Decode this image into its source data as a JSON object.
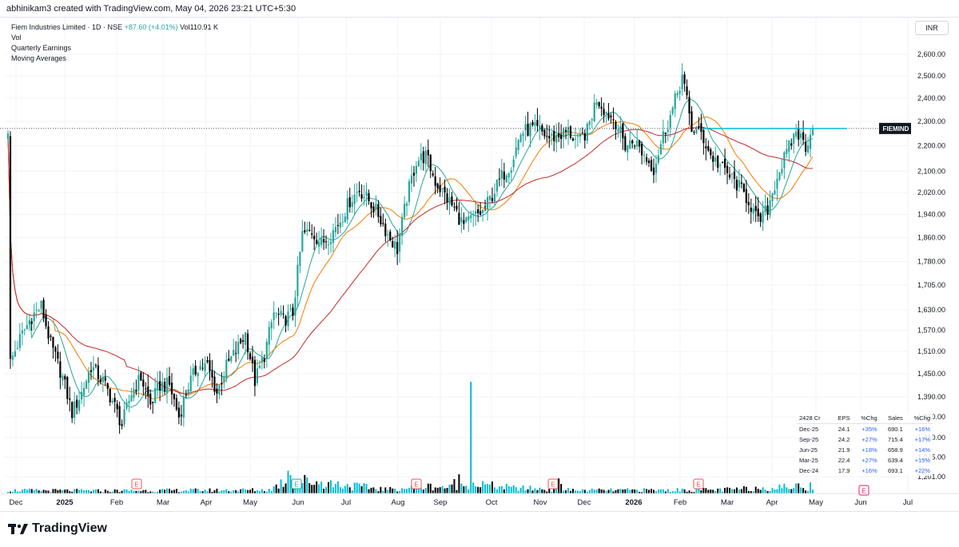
{
  "header": {
    "text": "abhinikam3 created with TradingView.com, May 04, 2026 23:21 UTC+5:30"
  },
  "legend": {
    "title": "Fiem Industries Limited · 1D · NSE",
    "change": "+87.60 (+4.01%)",
    "vol": "Vol110.91 K",
    "line2": "Vol",
    "line3": "Quarterly Earnings",
    "line4": "Moving Averages"
  },
  "currency": "INR",
  "brand": "TradingView",
  "colors": {
    "up": "#26a69a",
    "down": "#000000",
    "ma_fast": "#26a69a",
    "ma_mid": "#f57c00",
    "ma_slow": "#c62828",
    "volume": "#00bcd4",
    "price_line": "#00bcd4",
    "earnings_badge": "#ef5350"
  },
  "earnings_table": {
    "headers": [
      "2428 Cr",
      "EPS",
      "%Chg",
      "Sales",
      "%Chg"
    ],
    "rows": [
      [
        "Dec-25",
        "24.1",
        "+35%",
        "690.1",
        "+16%"
      ],
      [
        "Sep-25",
        "24.2",
        "+27%",
        "715.4",
        "+17%"
      ],
      [
        "Jun-25",
        "21.9",
        "+18%",
        "658.9",
        "+14%"
      ],
      [
        "Mar-25",
        "22.4",
        "+27%",
        "639.4",
        "+15%"
      ],
      [
        "Dec-24",
        "17.9",
        "+16%",
        "693.1",
        "+22%"
      ]
    ]
  },
  "chart_data": {
    "type": "candlestick",
    "symbol": "FIEMIND",
    "last_price": 2270.3,
    "last_price_label": "2,270.30",
    "y_scale": "log",
    "ylim": [
      1165,
      2700
    ],
    "y_ticks": [
      {
        "value": 2600,
        "label": "2,600.00"
      },
      {
        "value": 2500,
        "label": "2,500.00"
      },
      {
        "value": 2400,
        "label": "2,400.00"
      },
      {
        "value": 2300,
        "label": "2,300.00"
      },
      {
        "value": 2200,
        "label": "2,200.00"
      },
      {
        "value": 2100,
        "label": "2,100.00"
      },
      {
        "value": 2020,
        "label": "2,020.00"
      },
      {
        "value": 1940,
        "label": "1,940.00"
      },
      {
        "value": 1860,
        "label": "1,860.00"
      },
      {
        "value": 1780,
        "label": "1,780.00"
      },
      {
        "value": 1705,
        "label": "1,705.00"
      },
      {
        "value": 1630,
        "label": "1,630.00"
      },
      {
        "value": 1570,
        "label": "1,570.00"
      },
      {
        "value": 1510,
        "label": "1,510.00"
      },
      {
        "value": 1450,
        "label": "1,450.00"
      },
      {
        "value": 1390,
        "label": "1,390.00"
      },
      {
        "value": 1340,
        "label": "1,340.00"
      },
      {
        "value": 1290,
        "label": "1,290.00"
      },
      {
        "value": 1245,
        "label": "1,245.00"
      },
      {
        "value": 1201,
        "label": "1,201.00"
      }
    ],
    "x_months": [
      {
        "label": "Dec",
        "bold": false
      },
      {
        "label": "2025",
        "bold": true
      },
      {
        "label": "Feb",
        "bold": false
      },
      {
        "label": "Mar",
        "bold": false
      },
      {
        "label": "Apr",
        "bold": false
      },
      {
        "label": "May",
        "bold": false
      },
      {
        "label": "Jun",
        "bold": false
      },
      {
        "label": "Jul",
        "bold": false
      },
      {
        "label": "Aug",
        "bold": false
      },
      {
        "label": "Sep",
        "bold": false
      },
      {
        "label": "Oct",
        "bold": false
      },
      {
        "label": "Nov",
        "bold": false
      },
      {
        "label": "Dec",
        "bold": false
      },
      {
        "label": "2026",
        "bold": true
      },
      {
        "label": "Feb",
        "bold": false
      },
      {
        "label": "Mar",
        "bold": false
      },
      {
        "label": "Apr",
        "bold": false
      },
      {
        "label": "May",
        "bold": false
      },
      {
        "label": "Jun",
        "bold": false
      },
      {
        "label": "Jul",
        "bold": false
      }
    ],
    "earnings_badges": [
      "E",
      "E",
      "E",
      "E",
      "E",
      "E"
    ],
    "price_anchors": [
      [
        1,
        1480
      ],
      [
        5,
        1545
      ],
      [
        10,
        1610
      ],
      [
        14,
        1640
      ],
      [
        18,
        1530
      ],
      [
        23,
        1440
      ],
      [
        27,
        1350
      ],
      [
        31,
        1400
      ],
      [
        35,
        1470
      ],
      [
        40,
        1430
      ],
      [
        44,
        1380
      ],
      [
        48,
        1320
      ],
      [
        52,
        1400
      ],
      [
        56,
        1440
      ],
      [
        60,
        1370
      ],
      [
        64,
        1420
      ],
      [
        68,
        1420
      ],
      [
        72,
        1340
      ],
      [
        76,
        1420
      ],
      [
        80,
        1470
      ],
      [
        84,
        1470
      ],
      [
        88,
        1400
      ],
      [
        92,
        1470
      ],
      [
        96,
        1510
      ],
      [
        100,
        1560
      ],
      [
        104,
        1430
      ],
      [
        108,
        1500
      ],
      [
        112,
        1620
      ],
      [
        116,
        1600
      ],
      [
        120,
        1620
      ],
      [
        124,
        1870
      ],
      [
        128,
        1880
      ],
      [
        132,
        1840
      ],
      [
        136,
        1870
      ],
      [
        140,
        1920
      ],
      [
        144,
        1990
      ],
      [
        148,
        2030
      ],
      [
        152,
        1990
      ],
      [
        156,
        1940
      ],
      [
        160,
        1870
      ],
      [
        164,
        1820
      ],
      [
        168,
        2000
      ],
      [
        172,
        2140
      ],
      [
        176,
        2160
      ],
      [
        180,
        2060
      ],
      [
        184,
        2010
      ],
      [
        188,
        1960
      ],
      [
        192,
        1900
      ],
      [
        196,
        1930
      ],
      [
        200,
        1950
      ],
      [
        204,
        2010
      ],
      [
        208,
        2080
      ],
      [
        212,
        2130
      ],
      [
        216,
        2250
      ],
      [
        220,
        2270
      ],
      [
        224,
        2260
      ],
      [
        228,
        2230
      ],
      [
        232,
        2240
      ],
      [
        236,
        2260
      ],
      [
        240,
        2210
      ],
      [
        244,
        2260
      ],
      [
        248,
        2400
      ],
      [
        252,
        2340
      ],
      [
        256,
        2300
      ],
      [
        260,
        2200
      ],
      [
        264,
        2220
      ],
      [
        268,
        2160
      ],
      [
        272,
        2110
      ],
      [
        276,
        2240
      ],
      [
        280,
        2350
      ],
      [
        284,
        2500
      ],
      [
        288,
        2270
      ],
      [
        292,
        2250
      ],
      [
        296,
        2160
      ],
      [
        300,
        2120
      ],
      [
        304,
        2080
      ],
      [
        308,
        2040
      ],
      [
        312,
        1990
      ],
      [
        316,
        1910
      ],
      [
        320,
        1960
      ],
      [
        324,
        2080
      ],
      [
        328,
        2170
      ],
      [
        332,
        2260
      ],
      [
        336,
        2200
      ],
      [
        339,
        2270
      ]
    ],
    "volume_anchors": [
      [
        0,
        40
      ],
      [
        40,
        35
      ],
      [
        110,
        45
      ],
      [
        118,
        180
      ],
      [
        160,
        50
      ],
      [
        178,
        90
      ],
      [
        188,
        75
      ],
      [
        190,
        140
      ],
      [
        212,
        70
      ],
      [
        240,
        40
      ],
      [
        300,
        45
      ],
      [
        334,
        90
      ],
      [
        339,
        60
      ]
    ],
    "volume_spikes": [
      [
        118,
        285
      ],
      [
        119,
        230
      ],
      [
        120,
        160
      ],
      [
        188,
        180
      ],
      [
        190,
        240
      ],
      [
        192,
        90
      ],
      [
        195,
        1400
      ],
      [
        232,
        190
      ],
      [
        233,
        120
      ],
      [
        290,
        100
      ],
      [
        291,
        180
      ],
      [
        338,
        140
      ]
    ]
  }
}
